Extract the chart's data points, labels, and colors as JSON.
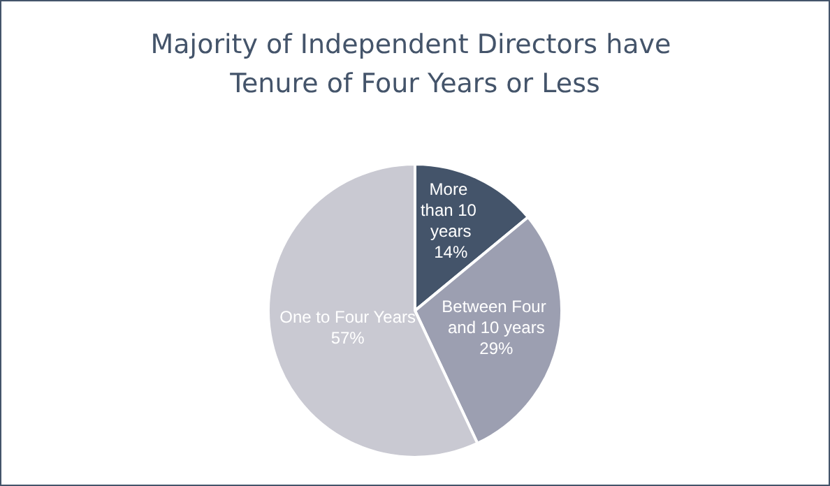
{
  "chart_data": {
    "type": "pie",
    "title": "Majority of Independent Directors have Tenure of Four Years or Less",
    "categories": [
      "More than 10 years",
      "Between Four and 10 years",
      "One to Four Years"
    ],
    "values": [
      14,
      29,
      57
    ],
    "colors": [
      "#44546a",
      "#9c9fb1",
      "#c9c9d2"
    ],
    "value_labels": [
      "14%",
      "29%",
      "57%"
    ],
    "legend": false
  }
}
